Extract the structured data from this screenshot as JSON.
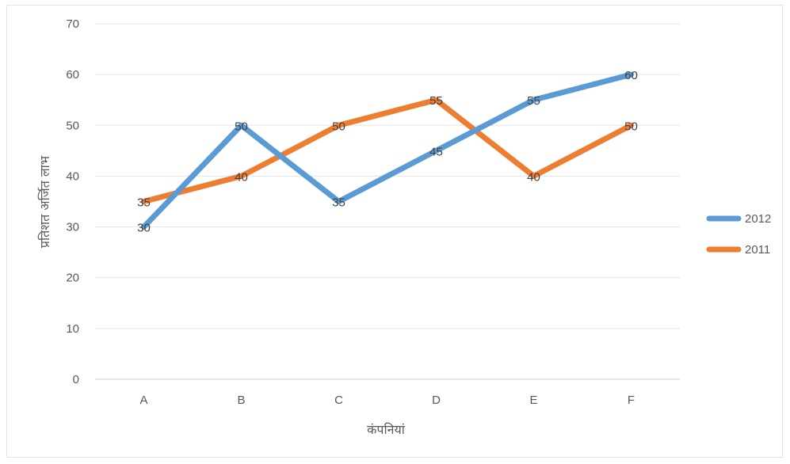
{
  "chart_data": {
    "type": "line",
    "categories": [
      "A",
      "B",
      "C",
      "D",
      "E",
      "F"
    ],
    "series": [
      {
        "name": "2012",
        "values": [
          30,
          50,
          35,
          45,
          55,
          60
        ],
        "color": "#5b9bd5"
      },
      {
        "name": "2011",
        "values": [
          35,
          40,
          50,
          55,
          40,
          50
        ],
        "color": "#ed7d31"
      }
    ],
    "title": "",
    "xlabel": "कंपनियां",
    "ylabel": "प्रतिशत अर्जित लाभ",
    "ylim": [
      0,
      70
    ],
    "yticks": [
      0,
      10,
      20,
      30,
      40,
      50,
      60,
      70
    ],
    "grid": true,
    "legend": "right"
  }
}
